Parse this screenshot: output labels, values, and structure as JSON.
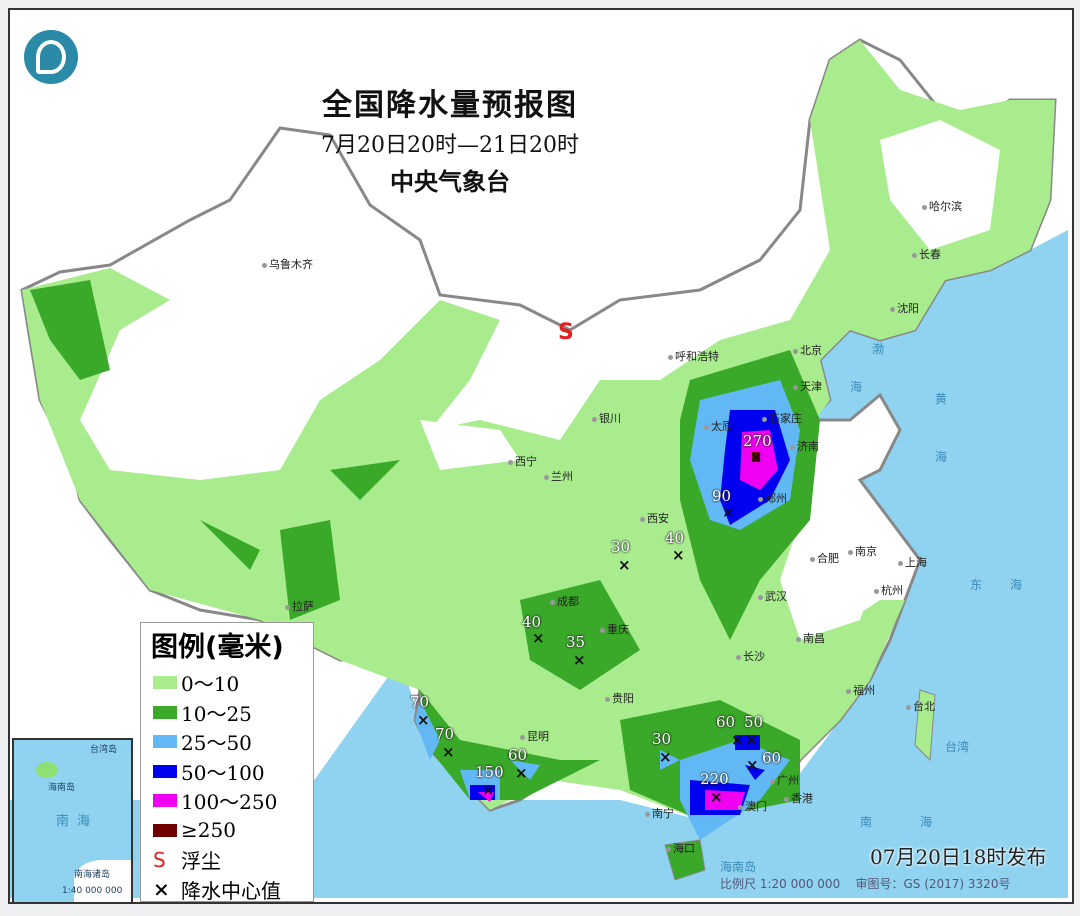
{
  "title": "全国降水量预报图",
  "period": "7月20日20时—21日20时",
  "issuer": "中央气象台",
  "legend": {
    "title": "图例(毫米)",
    "items": [
      {
        "label": "0～10",
        "color": "#a8ec8e"
      },
      {
        "label": "10～25",
        "color": "#3aa828"
      },
      {
        "label": "25～50",
        "color": "#62b8f4"
      },
      {
        "label": "50～100",
        "color": "#0000f0"
      },
      {
        "label": "100～250",
        "color": "#f000f0"
      },
      {
        "label": "≥250",
        "color": "#700000"
      }
    ],
    "dust_symbol": "S",
    "dust_label": "浮尘",
    "center_symbol": "×",
    "center_label": "降水中心值"
  },
  "dust_marker": "S",
  "cities": [
    "乌鲁木齐",
    "哈尔滨",
    "长春",
    "沈阳",
    "呼和浩特",
    "北京",
    "天津",
    "石家庄",
    "太原",
    "济南",
    "银川",
    "西宁",
    "兰州",
    "西安",
    "郑州",
    "合肥",
    "南京",
    "上海",
    "杭州",
    "武汉",
    "成都",
    "重庆",
    "长沙",
    "南昌",
    "福州",
    "台北",
    "贵阳",
    "昆明",
    "南宁",
    "广州",
    "香港",
    "澳门",
    "海口",
    "拉萨"
  ],
  "precip_centers": [
    270,
    90,
    30,
    40,
    40,
    35,
    70,
    70,
    150,
    60,
    30,
    60,
    50,
    60,
    220
  ],
  "sea_labels": [
    "渤",
    "海",
    "黄",
    "海",
    "东",
    "海",
    "南",
    "海",
    "台湾",
    "海南岛"
  ],
  "inset": {
    "labels": [
      "台湾岛",
      "海南岛",
      "南海",
      "南海诸岛"
    ],
    "scale": "1:40 000 000"
  },
  "publish_time": "07月20日18时发布",
  "scale": "比例尺 1:20 000 000",
  "map_approval": "审图号：GS (2017) 3320号",
  "colors": {
    "ocean": "#8fd3f0",
    "dust": "#e02020"
  }
}
